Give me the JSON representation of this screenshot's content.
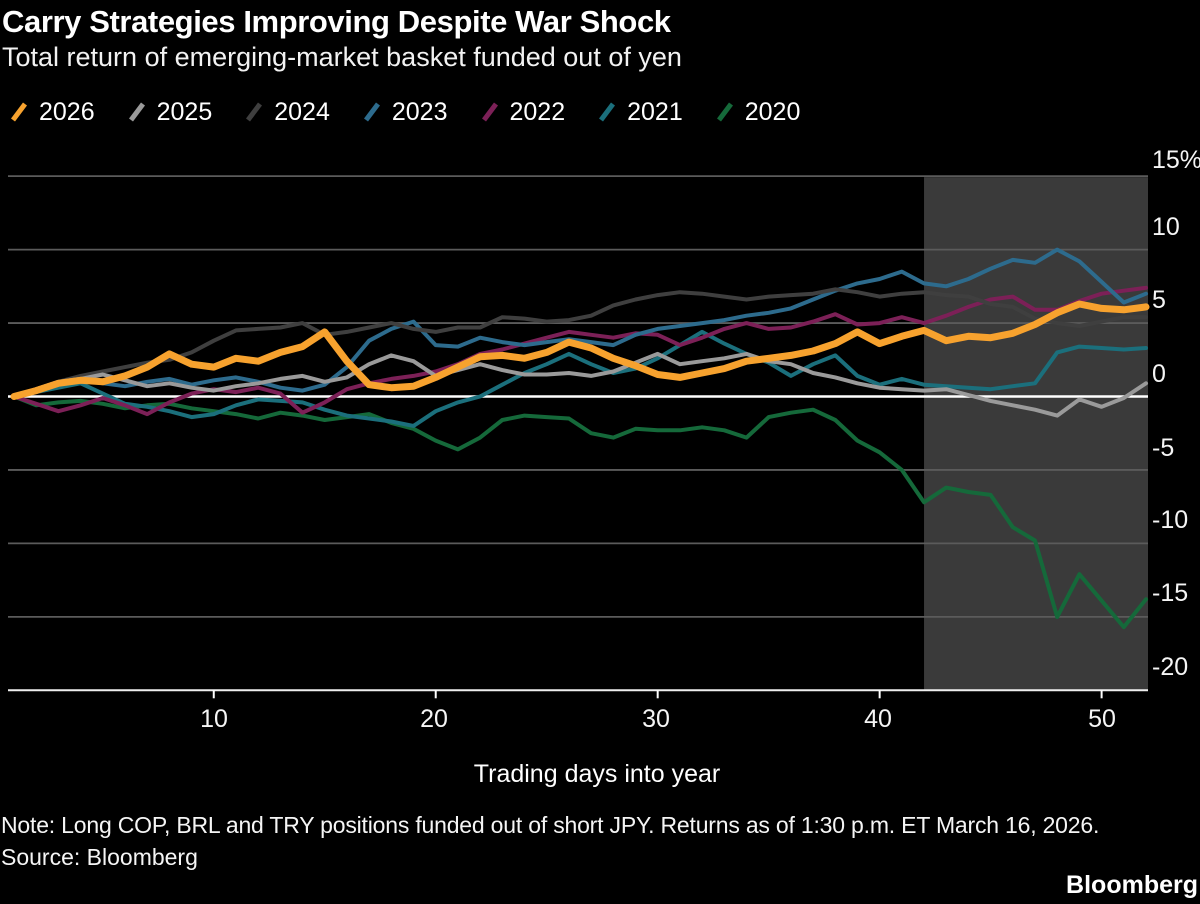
{
  "header": {
    "title": "Carry Strategies Improving Despite War Shock",
    "subtitle": "Total return of emerging-market basket funded out of yen"
  },
  "footer": {
    "note": "Note: Long COP, BRL and TRY positions funded out of short JPY. Returns as of 1:30 p.m. ET March 16, 2026.",
    "source": "Source: Bloomberg",
    "brand": "Bloomberg"
  },
  "colors": {
    "background": "#000000",
    "highlight_band": "#3a3a3a",
    "gridline": "#5b5b5b",
    "zero_line": "#ffffff",
    "axis_line": "#efefef",
    "tick_mark": "#ffffff"
  },
  "chart_data": {
    "type": "line",
    "title": "Carry Strategies Improving Despite War Shock",
    "subtitle": "Total return of emerging-market basket funded out of yen",
    "xlabel": "Trading days into year",
    "ylabel": "%",
    "xlim": [
      1,
      52.5
    ],
    "ylim": [
      -20,
      15
    ],
    "grid": true,
    "legend_position": "top",
    "x_ticks": [
      10,
      20,
      30,
      40,
      50
    ],
    "x_tick_labels": [
      "10",
      "20",
      "30",
      "40",
      "50"
    ],
    "y_ticks": [
      15,
      10,
      5,
      0,
      -5,
      -10,
      -15,
      -20
    ],
    "y_tick_labels": [
      "15%",
      "10",
      "5",
      "0",
      "-5",
      "-10",
      "-15",
      "-20"
    ],
    "highlight_band": {
      "x_start": 42,
      "x_end": 52.5
    },
    "x": [
      1,
      2,
      3,
      4,
      5,
      6,
      7,
      8,
      9,
      10,
      11,
      12,
      13,
      14,
      15,
      16,
      17,
      18,
      19,
      20,
      21,
      22,
      23,
      24,
      25,
      26,
      27,
      28,
      29,
      30,
      31,
      32,
      33,
      34,
      35,
      36,
      37,
      38,
      39,
      40,
      41,
      42,
      43,
      44,
      45,
      46,
      47,
      48,
      49,
      50,
      51,
      52
    ],
    "series": [
      {
        "name": "2026",
        "color": "#F7A22E",
        "line_width": 7,
        "values": [
          0,
          0.4,
          0.9,
          1.1,
          1.0,
          1.4,
          2.0,
          2.9,
          2.2,
          2.0,
          2.6,
          2.4,
          3.0,
          3.4,
          4.4,
          2.4,
          0.8,
          0.6,
          0.7,
          1.3,
          2.0,
          2.7,
          2.8,
          2.6,
          3.0,
          3.7,
          3.3,
          2.6,
          2.1,
          1.5,
          1.3,
          1.6,
          1.9,
          2.4,
          2.6,
          2.8,
          3.1,
          3.6,
          4.4,
          3.6,
          4.1,
          4.5,
          3.8,
          4.1,
          4.0,
          4.3,
          4.9,
          5.7,
          6.3,
          6.0,
          5.9,
          6.1
        ]
      },
      {
        "name": "2025",
        "color": "#9a9a9a",
        "line_width": 4,
        "values": [
          0,
          0.5,
          1.0,
          1.2,
          1.5,
          1.1,
          0.7,
          0.9,
          0.6,
          0.4,
          0.7,
          0.9,
          1.2,
          1.4,
          1.0,
          1.3,
          2.2,
          2.8,
          2.4,
          1.4,
          1.8,
          2.2,
          1.8,
          1.5,
          1.5,
          1.6,
          1.4,
          1.7,
          2.3,
          2.9,
          2.2,
          2.4,
          2.6,
          2.9,
          2.4,
          2.2,
          1.6,
          1.3,
          0.9,
          0.6,
          0.5,
          0.4,
          0.5,
          0.1,
          -0.3,
          -0.6,
          -0.9,
          -1.3,
          -0.2,
          -0.7,
          -0.1,
          0.9
        ]
      },
      {
        "name": "2024",
        "color": "#3f3f3f",
        "line_width": 4,
        "values": [
          0,
          0.5,
          1.0,
          1.4,
          1.7,
          2.0,
          2.3,
          2.5,
          3.0,
          3.8,
          4.5,
          4.6,
          4.7,
          5.0,
          4.2,
          4.4,
          4.7,
          5.0,
          4.6,
          4.4,
          4.7,
          4.7,
          5.4,
          5.3,
          5.1,
          5.2,
          5.5,
          6.2,
          6.6,
          6.9,
          7.1,
          7.0,
          6.8,
          6.6,
          6.8,
          6.9,
          7.0,
          7.3,
          7.1,
          6.8,
          7.0,
          7.1,
          6.9,
          6.8,
          6.3,
          6.1,
          5.3,
          5.0,
          4.8,
          5.1,
          5.4,
          5.4
        ]
      },
      {
        "name": "2023",
        "color": "#2d6b8d",
        "line_width": 4,
        "values": [
          0,
          0.3,
          0.8,
          1.1,
          0.9,
          0.7,
          1.0,
          1.2,
          0.8,
          1.1,
          1.3,
          1.0,
          0.6,
          0.4,
          0.8,
          2.0,
          3.8,
          4.6,
          5.1,
          3.5,
          3.4,
          4.0,
          3.7,
          3.5,
          3.7,
          3.9,
          3.7,
          3.5,
          4.2,
          4.6,
          4.8,
          5.0,
          5.2,
          5.5,
          5.7,
          6.0,
          6.6,
          7.2,
          7.7,
          8.0,
          8.5,
          7.7,
          7.5,
          8.0,
          8.7,
          9.3,
          9.1,
          10.0,
          9.2,
          7.8,
          6.4,
          7.0
        ]
      },
      {
        "name": "2022",
        "color": "#7c2057",
        "line_width": 4,
        "values": [
          0,
          -0.5,
          -1.0,
          -0.6,
          -0.1,
          -0.6,
          -1.2,
          -0.4,
          0.2,
          0.5,
          0.3,
          0.6,
          0.2,
          -1.1,
          -0.4,
          0.5,
          0.9,
          1.2,
          1.4,
          1.7,
          2.2,
          2.9,
          3.2,
          3.6,
          4.0,
          4.4,
          4.2,
          4.0,
          4.3,
          4.2,
          3.5,
          4.0,
          4.6,
          5.0,
          4.6,
          4.7,
          5.1,
          5.6,
          4.9,
          5.0,
          5.4,
          5.0,
          5.5,
          6.1,
          6.6,
          6.8,
          5.9,
          5.9,
          6.5,
          7.0,
          7.2,
          7.4
        ]
      },
      {
        "name": "2021",
        "color": "#1b6f7c",
        "line_width": 4,
        "values": [
          0,
          0.3,
          0.6,
          0.9,
          0.2,
          -0.5,
          -0.7,
          -1.0,
          -1.4,
          -1.2,
          -0.6,
          -0.2,
          -0.3,
          -0.4,
          -0.9,
          -1.3,
          -1.5,
          -1.7,
          -2.0,
          -1.0,
          -0.4,
          0.0,
          0.8,
          1.6,
          2.2,
          2.9,
          2.2,
          1.6,
          1.9,
          2.6,
          3.5,
          4.4,
          3.6,
          2.9,
          2.3,
          1.4,
          2.2,
          2.8,
          1.4,
          0.8,
          1.2,
          0.8,
          0.7,
          0.6,
          0.5,
          0.7,
          0.9,
          3.0,
          3.4,
          3.3,
          3.2,
          3.3
        ]
      },
      {
        "name": "2020",
        "color": "#15693a",
        "line_width": 4,
        "values": [
          0,
          -0.6,
          -0.4,
          -0.3,
          -0.5,
          -0.8,
          -0.6,
          -0.5,
          -0.8,
          -1.0,
          -1.2,
          -1.5,
          -1.1,
          -1.3,
          -1.6,
          -1.4,
          -1.2,
          -1.8,
          -2.2,
          -3.0,
          -3.6,
          -2.8,
          -1.6,
          -1.3,
          -1.4,
          -1.5,
          -2.5,
          -2.8,
          -2.2,
          -2.3,
          -2.3,
          -2.1,
          -2.3,
          -2.8,
          -1.4,
          -1.1,
          -0.9,
          -1.6,
          -3.0,
          -3.8,
          -5.0,
          -7.2,
          -6.2,
          -6.5,
          -6.7,
          -8.9,
          -9.8,
          -15.0,
          -12.1,
          -13.9,
          -15.7,
          -13.8
        ]
      }
    ]
  }
}
